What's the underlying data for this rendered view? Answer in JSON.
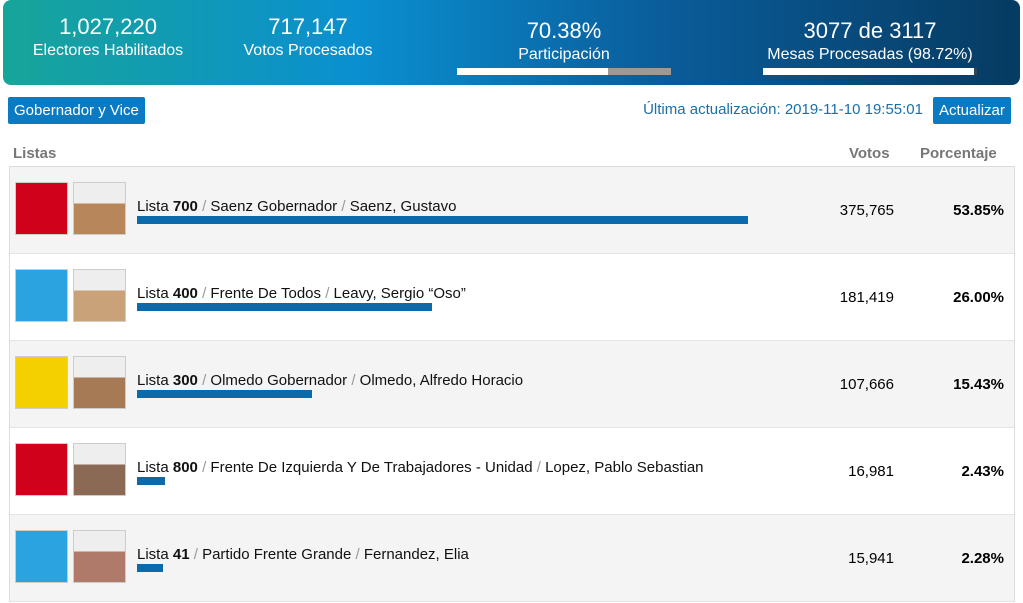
{
  "header": {
    "electores": {
      "value": "1,027,220",
      "label": "Electores Habilitados"
    },
    "votos": {
      "value": "717,147",
      "label": "Votos Procesados"
    },
    "participacion": {
      "value": 70.38,
      "label": "70.38%",
      "caption": "Participación"
    },
    "mesas": {
      "procesadas": 3077,
      "de": "de",
      "total": 3117,
      "label": "Mesas Procesadas (98.72%)"
    }
  },
  "toolbar": {
    "category": "Gobernador y Vice",
    "updated": "Última actualización: 2019-11-10 19:55:01",
    "refresh": "Actualizar"
  },
  "table": {
    "columns": [
      "Listas",
      "Votos",
      "Porcentaje"
    ],
    "lista_word": "Lista",
    "sep": "/",
    "rows": [
      {
        "lista": "700",
        "party": "Saenz Gobernador",
        "candidate": "Saenz, Gustavo",
        "votes": "375,765",
        "pct": {
          "value": 53.85,
          "label": "53.85%"
        }
      },
      {
        "lista": "400",
        "party": "Frente De Todos",
        "candidate": "Leavy, Sergio “Oso”",
        "votes": "181,419",
        "pct": {
          "value": 26.0,
          "label": "26.00%"
        }
      },
      {
        "lista": "300",
        "party": "Olmedo Gobernador",
        "candidate": "Olmedo, Alfredo Horacio",
        "votes": "107,666",
        "pct": {
          "value": 15.43,
          "label": "15.43%"
        }
      },
      {
        "lista": "800",
        "party": "Frente De Izquierda Y De Trabajadores - Unidad",
        "candidate": "Lopez, Pablo Sebastian",
        "votes": "16,981",
        "pct": {
          "value": 2.43,
          "label": "2.43%"
        }
      },
      {
        "lista": "41",
        "party": "Partido Frente Grande",
        "candidate": "Fernandez, Elia",
        "votes": "15,941",
        "pct": {
          "value": 2.28,
          "label": "2.28%"
        }
      }
    ]
  }
}
